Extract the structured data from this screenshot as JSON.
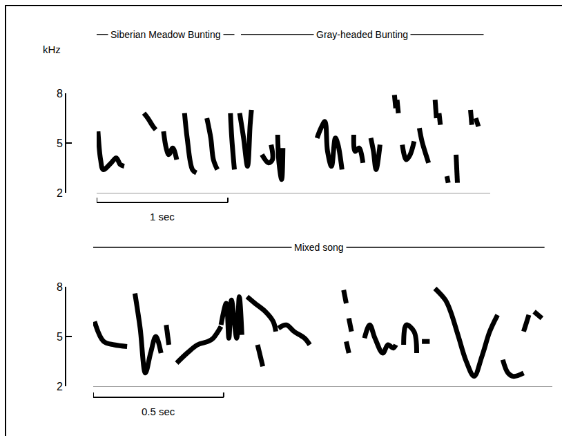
{
  "chart_data": [
    {
      "type": "line",
      "color": "#000000",
      "line_style": "solid",
      "headers": [
        {
          "label": "Siberian Meadow Bunting",
          "start": 0,
          "end": 1.05
        },
        {
          "label": "Gray-headed Bunting",
          "start": 1.1,
          "end": 2.95
        }
      ],
      "y_label": "kHz",
      "xlim": [
        0,
        3
      ],
      "ylim": [
        2,
        8
      ],
      "yticks": [
        2,
        5,
        8
      ],
      "tick_labels": "y",
      "scale_bar": {
        "label": "1 sec",
        "start": 0,
        "length": 1
      },
      "series": [
        {
          "x": [
            0.01,
            0.03,
            0.05,
            0.11,
            0.15,
            0.18,
            0.21
          ],
          "values": [
            5.7,
            4.0,
            3.4,
            3.8,
            4.1,
            3.7,
            3.6
          ]
        },
        {
          "x": [
            0.36,
            0.39,
            0.43,
            0.45
          ],
          "values": [
            6.8,
            6.5,
            6.0,
            5.8
          ]
        },
        {
          "x": [
            0.51,
            0.53,
            0.55,
            0.58,
            0.61
          ],
          "values": [
            5.7,
            4.7,
            4.3,
            4.7,
            4.0
          ]
        },
        {
          "x": [
            0.67,
            0.69,
            0.73,
            0.76
          ],
          "values": [
            6.8,
            5.3,
            3.4,
            3.2
          ]
        },
        {
          "x": [
            0.84,
            0.87,
            0.89,
            0.92
          ],
          "values": [
            6.5,
            5.3,
            4.0,
            3.4
          ]
        },
        {
          "x": [
            1.02,
            1.03,
            1.05
          ],
          "values": [
            6.8,
            5.3,
            3.4
          ]
        },
        {
          "x": [
            1.09,
            1.12,
            1.15,
            1.17,
            1.18
          ],
          "values": [
            6.8,
            5.3,
            3.6,
            6.1,
            7.0
          ]
        },
        {
          "x": [
            1.26,
            1.31,
            1.34,
            1.33
          ],
          "values": [
            4.3,
            3.8,
            4.0,
            4.9
          ]
        },
        {
          "x": [
            1.38,
            1.39,
            1.41,
            1.42
          ],
          "values": [
            5.5,
            3.8,
            2.8,
            4.7
          ]
        },
        {
          "x": [
            1.68,
            1.71,
            1.74,
            1.76,
            1.79,
            1.82,
            1.84,
            1.87
          ],
          "values": [
            5.3,
            5.9,
            6.3,
            4.5,
            3.6,
            5.3,
            4.9,
            3.4
          ]
        },
        {
          "x": [
            1.96,
            1.97,
            2.0,
            2.03
          ],
          "values": [
            5.5,
            4.5,
            4.7,
            3.8
          ]
        },
        {
          "x": [
            2.09,
            2.11,
            2.13,
            2.16
          ],
          "values": [
            5.3,
            4.5,
            3.4,
            4.9
          ]
        },
        {
          "x": [
            2.27,
            2.28
          ],
          "values": [
            7.9,
            7.1
          ]
        },
        {
          "x": [
            2.29,
            2.3
          ],
          "values": [
            7.6,
            6.8
          ]
        },
        {
          "x": [
            2.33,
            2.36,
            2.39,
            2.42
          ],
          "values": [
            4.9,
            4.0,
            4.3,
            5.1
          ]
        },
        {
          "x": [
            2.46,
            2.48,
            2.51,
            2.53
          ],
          "values": [
            5.9,
            5.1,
            4.3,
            3.8
          ]
        },
        {
          "x": [
            2.58,
            2.59
          ],
          "values": [
            7.6,
            6.5
          ]
        },
        {
          "x": [
            2.61,
            2.62
          ],
          "values": [
            6.8,
            6.1
          ]
        },
        {
          "x": [
            2.67,
            2.68
          ],
          "values": [
            3.0,
            2.6
          ]
        },
        {
          "x": [
            2.74,
            2.75
          ],
          "values": [
            4.3,
            2.6
          ]
        },
        {
          "x": [
            2.85,
            2.86
          ],
          "values": [
            7.0,
            6.1
          ]
        },
        {
          "x": [
            2.89,
            2.91
          ],
          "values": [
            6.5,
            6.0
          ]
        }
      ]
    },
    {
      "type": "line",
      "color": "#000000",
      "line_style": "solid",
      "headers": [
        {
          "label": "Mixed song",
          "start": 0,
          "end": 1.73
        }
      ],
      "xlim": [
        0,
        1.76
      ],
      "ylim": [
        2,
        8
      ],
      "yticks": [
        2,
        5,
        8
      ],
      "tick_labels": "y",
      "scale_bar": {
        "label": "0.5 sec",
        "start": 0,
        "length": 0.5
      },
      "series": [
        {
          "x": [
            0.005,
            0.04,
            0.08,
            0.13
          ],
          "values": [
            5.9,
            4.7,
            4.5,
            4.4
          ]
        },
        {
          "x": [
            0.16,
            0.18,
            0.2,
            0.22,
            0.24,
            0.26
          ],
          "values": [
            7.6,
            5.5,
            2.8,
            4.0,
            5.0,
            4.0
          ]
        },
        {
          "x": [
            0.28,
            0.29
          ],
          "values": [
            5.7,
            4.5
          ]
        },
        {
          "x": [
            0.32,
            0.36,
            0.4,
            0.44,
            0.46,
            0.49
          ],
          "values": [
            3.4,
            4.0,
            4.5,
            4.7,
            4.9,
            5.6
          ]
        },
        {
          "x": [
            0.49,
            0.51,
            0.52,
            0.53,
            0.55,
            0.56,
            0.57
          ],
          "values": [
            5.7,
            7.0,
            4.9,
            7.2,
            4.9,
            7.4,
            5.1
          ]
        },
        {
          "x": [
            0.59,
            0.62,
            0.66,
            0.69,
            0.7
          ],
          "values": [
            7.4,
            7.0,
            6.5,
            5.9,
            5.3
          ]
        },
        {
          "x": [
            0.63,
            0.65
          ],
          "values": [
            4.5,
            3.2
          ]
        },
        {
          "x": [
            0.71,
            0.74,
            0.77,
            0.81,
            0.83
          ],
          "values": [
            5.5,
            5.7,
            5.3,
            4.9,
            4.5
          ]
        },
        {
          "x": [
            0.96,
            0.97
          ],
          "values": [
            7.8,
            7.0
          ]
        },
        {
          "x": [
            0.98,
            0.99
          ],
          "values": [
            6.1,
            5.3
          ]
        },
        {
          "x": [
            0.97,
            0.98
          ],
          "values": [
            4.7,
            4.0
          ]
        },
        {
          "x": [
            1.04,
            1.06,
            1.08,
            1.11,
            1.13,
            1.15,
            1.16
          ],
          "values": [
            4.9,
            5.7,
            4.9,
            4.0,
            4.5,
            4.3,
            4.5
          ]
        },
        {
          "x": [
            1.19,
            1.2,
            1.23,
            1.24
          ],
          "values": [
            4.5,
            5.7,
            5.3,
            4.0
          ]
        },
        {
          "x": [
            1.26,
            1.29
          ],
          "values": [
            4.7,
            4.7
          ]
        },
        {
          "x": [
            1.31,
            1.35,
            1.37,
            1.4,
            1.43,
            1.46,
            1.49,
            1.52,
            1.55
          ],
          "values": [
            7.9,
            7.2,
            6.5,
            5.0,
            3.5,
            2.6,
            3.8,
            5.3,
            6.3
          ]
        },
        {
          "x": [
            1.57,
            1.59,
            1.61,
            1.65
          ],
          "values": [
            3.6,
            2.8,
            2.6,
            2.8
          ]
        },
        {
          "x": [
            1.65,
            1.67
          ],
          "values": [
            5.3,
            6.3
          ]
        },
        {
          "x": [
            1.69,
            1.72
          ],
          "values": [
            6.5,
            6.1
          ]
        }
      ]
    }
  ]
}
